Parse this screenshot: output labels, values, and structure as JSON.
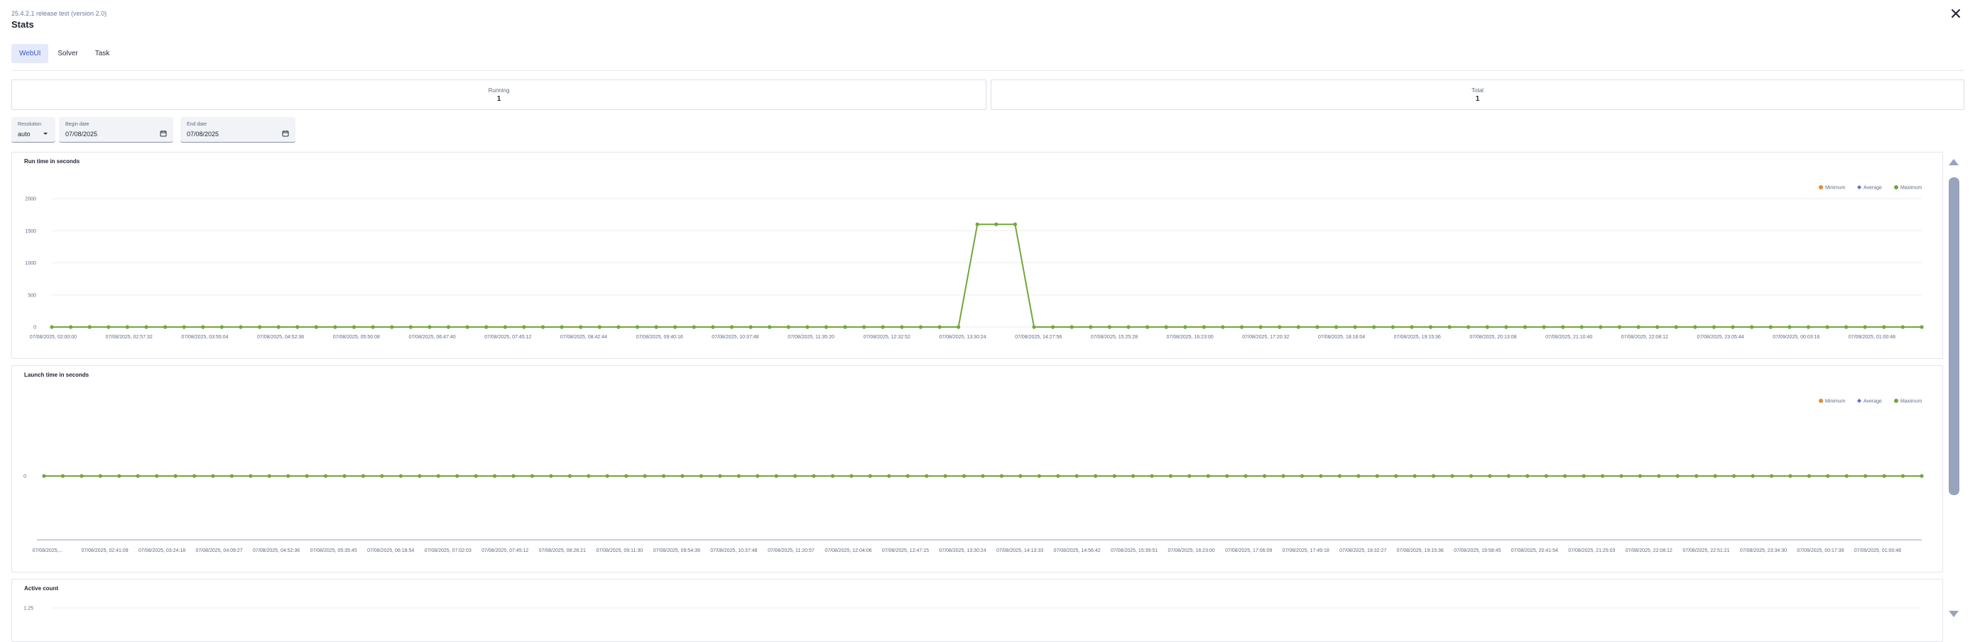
{
  "header": {
    "subtitle": "25.4.2.1 release test (version 2.0)",
    "title": "Stats",
    "close_icon": "close-icon"
  },
  "tabs": [
    {
      "label": "WebUI",
      "active": true
    },
    {
      "label": "Solver",
      "active": false
    },
    {
      "label": "Task",
      "active": false
    }
  ],
  "stats": {
    "running": {
      "label": "Running",
      "value": "1"
    },
    "total": {
      "label": "Total",
      "value": "1"
    }
  },
  "filters": {
    "resolution": {
      "label": "Resolution",
      "value": "auto",
      "icon": "caret-down-icon"
    },
    "begin_date": {
      "label": "Begin date",
      "value": "07/08/2025",
      "icon": "calendar-icon"
    },
    "end_date": {
      "label": "End date",
      "value": "07/08/2025",
      "icon": "calendar-icon"
    }
  },
  "colors": {
    "accent": "#3a56c8",
    "minimum": "#e8892b",
    "average": "#5b6fd6",
    "maximum": "#6fa83a"
  },
  "chart_data": [
    {
      "type": "line",
      "title": "Run time in seconds",
      "ylim": [
        0,
        2000
      ],
      "yticks": [
        0,
        500,
        1000,
        1500,
        2000
      ],
      "legend": [
        "Minimum",
        "Average",
        "Maximum"
      ],
      "legend_position": "top-right",
      "grid": true,
      "x_tick_labels": [
        "07/08/2025, 02:00:00",
        "07/08/2025, 02:57:32",
        "07/08/2025, 03:55:04",
        "07/08/2025, 04:52:36",
        "07/08/2025, 05:50:08",
        "07/08/2025, 06:47:40",
        "07/08/2025, 07:45:12",
        "07/08/2025, 08:42:44",
        "07/08/2025, 09:40:16",
        "07/08/2025, 10:37:48",
        "07/08/2025, 11:35:20",
        "07/08/2025, 12:32:52",
        "07/08/2025, 13:30:24",
        "07/08/2025, 14:27:56",
        "07/08/2025, 15:25:28",
        "07/08/2025, 16:23:00",
        "07/08/2025, 17:20:32",
        "07/08/2025, 18:18:04",
        "07/08/2025, 19:15:36",
        "07/08/2025, 20:13:08",
        "07/08/2025, 21:10:40",
        "07/08/2025, 22:08:12",
        "07/08/2025, 23:05:44",
        "07/09/2025, 00:03:16",
        "07/09/2025, 01:00:48"
      ],
      "series": [
        {
          "name": "Maximum",
          "values": [
            0,
            0,
            0,
            0,
            0,
            0,
            0,
            0,
            0,
            0,
            0,
            0,
            0,
            0,
            0,
            0,
            0,
            0,
            0,
            0,
            0,
            0,
            0,
            0,
            0,
            0,
            0,
            0,
            0,
            0,
            0,
            0,
            0,
            0,
            0,
            0,
            0,
            0,
            0,
            0,
            0,
            0,
            0,
            0,
            0,
            0,
            0,
            0,
            0,
            1600,
            1600,
            1600,
            0,
            0,
            0,
            0,
            0,
            0,
            0,
            0,
            0,
            0,
            0,
            0,
            0,
            0,
            0,
            0,
            0,
            0,
            0,
            0,
            0,
            0,
            0,
            0,
            0,
            0,
            0,
            0,
            0,
            0,
            0,
            0,
            0,
            0,
            0,
            0,
            0,
            0,
            0,
            0,
            0,
            0,
            0,
            0,
            0,
            0,
            0,
            0
          ]
        }
      ]
    },
    {
      "type": "line",
      "title": "Launch time in seconds",
      "yticks": [
        0
      ],
      "legend": [
        "Minimum",
        "Average",
        "Maximum"
      ],
      "legend_position": "top-right",
      "x_tick_labels": [
        "07/08/2025,...",
        "07/08/2025, 02:41:09",
        "07/08/2025, 03:24:18",
        "07/08/2025, 04:09:27",
        "07/08/2025, 04:52:36",
        "07/08/2025, 05:35:45",
        "07/08/2025, 06:18:54",
        "07/08/2025, 07:02:03",
        "07/08/2025, 07:45:12",
        "07/08/2025, 08:28:21",
        "07/08/2025, 09:11:30",
        "07/08/2025, 09:54:39",
        "07/08/2025, 10:37:48",
        "07/08/2025, 11:20:57",
        "07/08/2025, 12:04:06",
        "07/08/2025, 12:47:15",
        "07/08/2025, 13:30:24",
        "07/08/2025, 14:13:33",
        "07/08/2025, 14:56:42",
        "07/08/2025, 15:39:51",
        "07/08/2025, 16:23:00",
        "07/08/2025, 17:06:09",
        "07/08/2025, 17:49:18",
        "07/08/2025, 18:32:27",
        "07/08/2025, 19:15:36",
        "07/08/2025, 19:58:45",
        "07/08/2025, 20:41:54",
        "07/08/2025, 21:25:03",
        "07/08/2025, 22:08:12",
        "07/08/2025, 22:51:21",
        "07/08/2025, 23:34:30",
        "07/09/2025, 00:17:39",
        "07/09/2025, 01:00:48"
      ],
      "series": [
        {
          "name": "Maximum",
          "values": [
            0,
            0,
            0,
            0,
            0,
            0,
            0,
            0,
            0,
            0,
            0,
            0,
            0,
            0,
            0,
            0,
            0,
            0,
            0,
            0,
            0,
            0,
            0,
            0,
            0,
            0,
            0,
            0,
            0,
            0,
            0,
            0,
            0,
            0,
            0,
            0,
            0,
            0,
            0,
            0,
            0,
            0,
            0,
            0,
            0,
            0,
            0,
            0,
            0,
            0,
            0,
            0,
            0,
            0,
            0,
            0,
            0,
            0,
            0,
            0,
            0,
            0,
            0,
            0,
            0,
            0,
            0,
            0,
            0,
            0,
            0,
            0,
            0,
            0,
            0,
            0,
            0,
            0,
            0,
            0,
            0,
            0,
            0,
            0,
            0,
            0,
            0,
            0,
            0,
            0,
            0,
            0,
            0,
            0,
            0,
            0,
            0,
            0,
            0,
            0,
            0
          ]
        }
      ]
    },
    {
      "type": "line",
      "title": "Active count",
      "yticks": [
        1.25
      ],
      "ytick_labels": [
        "1.25"
      ]
    }
  ]
}
